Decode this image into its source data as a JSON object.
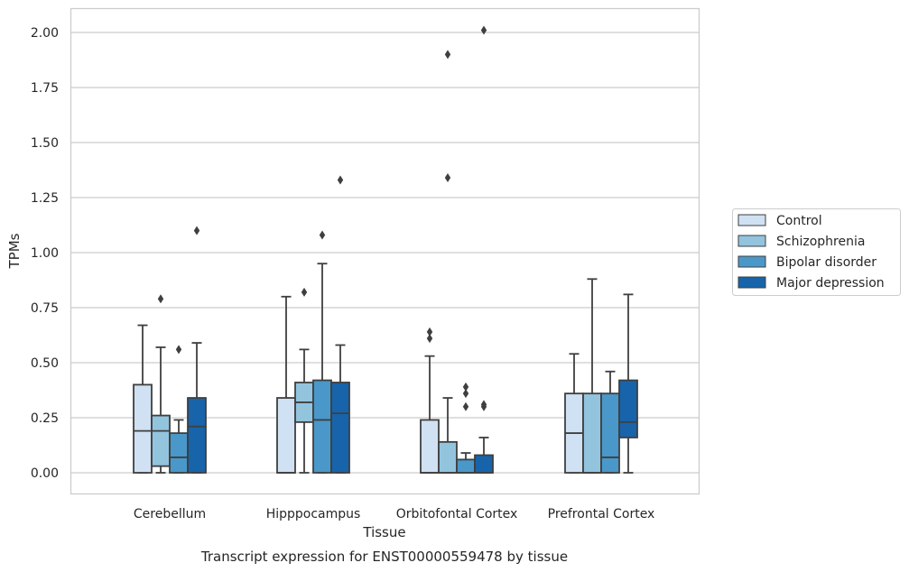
{
  "chart_data": {
    "type": "box",
    "title": "",
    "caption": "Transcript expression for ENST00000559478 by tissue",
    "xlabel": "Tissue",
    "ylabel": "TPMs",
    "ylim": [
      -0.1,
      2.12
    ],
    "yticks": [
      "0.00",
      "0.25",
      "0.50",
      "0.75",
      "1.00",
      "1.25",
      "1.50",
      "1.75",
      "2.00"
    ],
    "grid": "horizontal",
    "legend_position": "right",
    "categories": [
      "Cerebellum",
      "Hipppocampus",
      "Orbitofontal Cortex",
      "Prefrontal Cortex"
    ],
    "series": [
      {
        "name": "Control",
        "color": "#cfe1f2",
        "boxes": [
          {
            "whisker_low": 0.0,
            "q1": 0.0,
            "median": 0.19,
            "q3": 0.4,
            "whisker_high": 0.67,
            "outliers": []
          },
          {
            "whisker_low": 0.0,
            "q1": 0.0,
            "median": 0.0,
            "q3": 0.34,
            "whisker_high": 0.8,
            "outliers": []
          },
          {
            "whisker_low": 0.0,
            "q1": 0.0,
            "median": 0.0,
            "q3": 0.24,
            "whisker_high": 0.53,
            "outliers": [
              0.61,
              0.64
            ]
          },
          {
            "whisker_low": 0.0,
            "q1": 0.0,
            "median": 0.18,
            "q3": 0.36,
            "whisker_high": 0.54,
            "outliers": []
          }
        ]
      },
      {
        "name": "Schizophrenia",
        "color": "#93c4de",
        "boxes": [
          {
            "whisker_low": 0.0,
            "q1": 0.03,
            "median": 0.19,
            "q3": 0.26,
            "whisker_high": 0.57,
            "outliers": [
              0.79
            ]
          },
          {
            "whisker_low": 0.0,
            "q1": 0.23,
            "median": 0.32,
            "q3": 0.41,
            "whisker_high": 0.56,
            "outliers": [
              0.82
            ]
          },
          {
            "whisker_low": 0.0,
            "q1": 0.0,
            "median": 0.0,
            "q3": 0.14,
            "whisker_high": 0.34,
            "outliers": [
              1.34,
              1.9
            ]
          },
          {
            "whisker_low": 0.0,
            "q1": 0.0,
            "median": 0.0,
            "q3": 0.36,
            "whisker_high": 0.88,
            "outliers": []
          }
        ]
      },
      {
        "name": "Bipolar disorder",
        "color": "#4a98c9",
        "boxes": [
          {
            "whisker_low": 0.0,
            "q1": 0.0,
            "median": 0.07,
            "q3": 0.18,
            "whisker_high": 0.24,
            "outliers": [
              0.56
            ]
          },
          {
            "whisker_low": 0.0,
            "q1": 0.0,
            "median": 0.24,
            "q3": 0.42,
            "whisker_high": 0.95,
            "outliers": [
              1.08
            ]
          },
          {
            "whisker_low": 0.0,
            "q1": 0.0,
            "median": 0.0,
            "q3": 0.06,
            "whisker_high": 0.09,
            "outliers": [
              0.3,
              0.36,
              0.39
            ]
          },
          {
            "whisker_low": 0.0,
            "q1": 0.0,
            "median": 0.07,
            "q3": 0.36,
            "whisker_high": 0.46,
            "outliers": []
          }
        ]
      },
      {
        "name": "Major depression",
        "color": "#1764ab",
        "boxes": [
          {
            "whisker_low": 0.0,
            "q1": 0.0,
            "median": 0.21,
            "q3": 0.34,
            "whisker_high": 0.59,
            "outliers": [
              1.1
            ]
          },
          {
            "whisker_low": 0.0,
            "q1": 0.0,
            "median": 0.27,
            "q3": 0.41,
            "whisker_high": 0.58,
            "outliers": [
              1.33
            ]
          },
          {
            "whisker_low": 0.0,
            "q1": 0.0,
            "median": 0.0,
            "q3": 0.08,
            "whisker_high": 0.16,
            "outliers": [
              0.3,
              0.31,
              2.01
            ]
          },
          {
            "whisker_low": 0.0,
            "q1": 0.16,
            "median": 0.23,
            "q3": 0.42,
            "whisker_high": 0.81,
            "outliers": []
          }
        ]
      }
    ]
  }
}
